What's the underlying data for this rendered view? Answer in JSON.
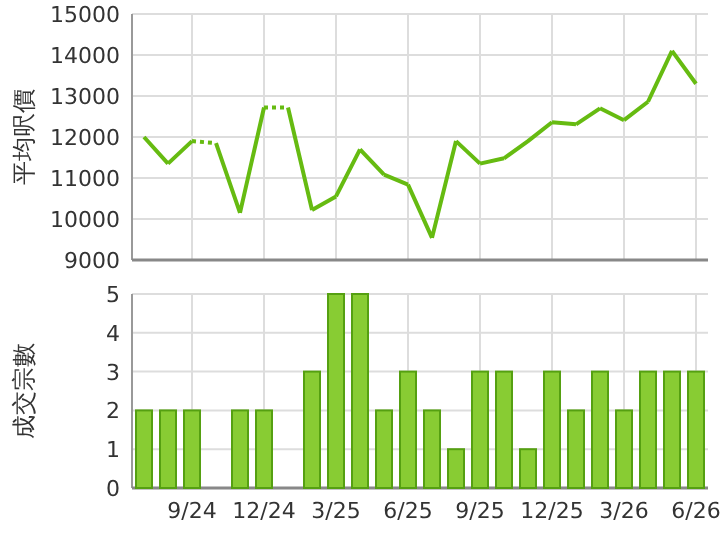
{
  "chart_data": [
    {
      "type": "line",
      "ylabel": "平均呎價",
      "categories": [
        null,
        null,
        null,
        null,
        null,
        null,
        null,
        null,
        null,
        null,
        null,
        null,
        null,
        null,
        null,
        null,
        null,
        null,
        null,
        null,
        null,
        null,
        null,
        null
      ],
      "series": [
        {
          "color": "#66bb11",
          "values": [
            12000,
            11350,
            11900,
            11850,
            10150,
            12720,
            12720,
            10220,
            10550,
            11700,
            11080,
            10840,
            9540,
            11900,
            11350,
            11480,
            11900,
            12360,
            12310,
            12700,
            12410,
            12860,
            14100,
            13300
          ]
        }
      ],
      "ylim": [
        9000,
        15000
      ],
      "yticks": [
        9000,
        10000,
        11000,
        12000,
        13000,
        14000,
        15000
      ],
      "grid": true,
      "tick_labels": "y"
    },
    {
      "type": "bar",
      "ylabel": "成交宗數",
      "categories": [
        null,
        null,
        "9/24",
        null,
        null,
        "12/24",
        null,
        null,
        "3/25",
        null,
        null,
        "6/25",
        null,
        null,
        "9/25",
        null,
        null,
        "12/25",
        null,
        null,
        "3/26",
        null,
        null,
        "6/26"
      ],
      "series": [
        {
          "color": "#88cc33",
          "values": [
            2,
            2,
            2,
            0,
            2,
            2,
            0,
            3,
            5,
            5,
            2,
            3,
            2,
            1,
            3,
            3,
            1,
            3,
            2,
            3,
            2,
            3,
            3,
            3
          ]
        }
      ],
      "ylim": [
        0,
        5
      ],
      "yticks": [
        0,
        1,
        2,
        3,
        4,
        5
      ],
      "grid": true
    }
  ]
}
